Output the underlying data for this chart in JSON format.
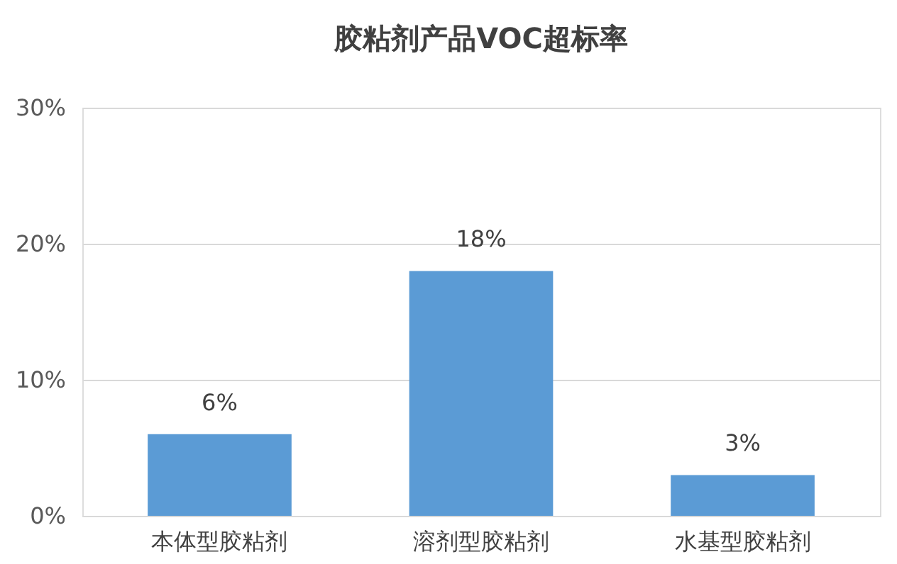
{
  "chart_data": {
    "type": "bar",
    "title": "胶粘剂产品VOC超标率",
    "categories": [
      "本体型胶粘剂",
      "溶剂型胶粘剂",
      "水基型胶粘剂"
    ],
    "values": [
      6,
      18,
      3
    ],
    "value_labels": [
      "6%",
      "18%",
      "3%"
    ],
    "color": "#5b9bd5",
    "ylim": [
      0,
      30
    ],
    "yticks": [
      {
        "value": 0,
        "label": "0%"
      },
      {
        "value": 10,
        "label": "10%"
      },
      {
        "value": 20,
        "label": "20%"
      },
      {
        "value": 30,
        "label": "30%"
      }
    ],
    "grid": "y"
  }
}
